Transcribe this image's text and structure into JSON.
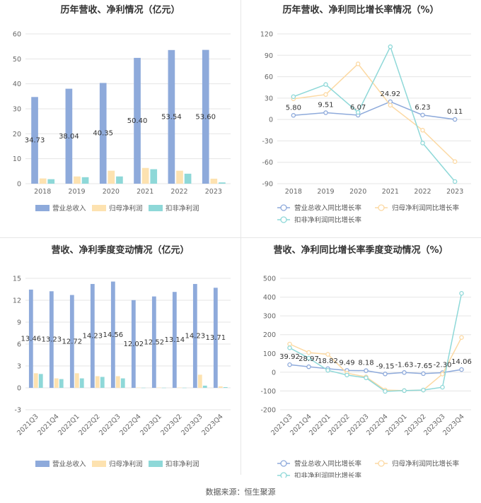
{
  "footer": "数据来源：恒生聚源",
  "colors": {
    "revenue": "#8eaadb",
    "net_profit": "#fde2b0",
    "deducted_profit": "#8ed8d8",
    "rev_growth": "#8eaadb",
    "np_growth": "#fcd9a3",
    "dp_growth": "#8ed8d8",
    "grid": "#e5e5e5",
    "axis_text": "#666666",
    "title": "#333333"
  },
  "chart_data": [
    {
      "type": "bar",
      "title": "历年营收、净利情况（亿元）",
      "categories": [
        "2018",
        "2019",
        "2020",
        "2021",
        "2022",
        "2023"
      ],
      "ylim": [
        0,
        60
      ],
      "yticks": [
        0,
        10,
        20,
        30,
        40,
        50,
        60
      ],
      "series": [
        {
          "name": "营业总收入",
          "values": [
            34.73,
            38.04,
            40.35,
            50.4,
            53.54,
            53.6
          ]
        },
        {
          "name": "归母净利润",
          "values": [
            2.1,
            2.9,
            5.2,
            6.3,
            5.2,
            2.0
          ]
        },
        {
          "name": "扣非净利润",
          "values": [
            1.8,
            2.6,
            2.9,
            5.8,
            4.0,
            0.5
          ]
        }
      ],
      "data_labels": [
        "34.73",
        "38.04",
        "40.35",
        "50.40",
        "53.54",
        "53.60"
      ],
      "legend": "bottom"
    },
    {
      "type": "line",
      "title": "历年营收、净利同比增长率情况（%）",
      "categories": [
        "2018",
        "2019",
        "2020",
        "2021",
        "2022",
        "2023"
      ],
      "ylim": [
        -90,
        120
      ],
      "yticks": [
        -90,
        -60,
        -30,
        0,
        30,
        60,
        90,
        120
      ],
      "series": [
        {
          "name": "营业总收入同比增长率",
          "values": [
            5.8,
            9.51,
            6.07,
            24.92,
            6.23,
            0.11
          ]
        },
        {
          "name": "归母净利润同比增长率",
          "values": [
            29,
            35,
            78,
            20,
            -15,
            -59
          ]
        },
        {
          "name": "扣非净利润同比增长率",
          "values": [
            32,
            49,
            10,
            102,
            -33,
            -87
          ]
        }
      ],
      "data_labels": [
        "5.80",
        "9.51",
        "6.07",
        "24.92",
        "6.23",
        "0.11"
      ],
      "legend": "bottom"
    },
    {
      "type": "bar",
      "title": "营收、净利季度变动情况（亿元）",
      "categories": [
        "2021Q3",
        "2021Q4",
        "2022Q1",
        "2022Q2",
        "2022Q3",
        "2022Q4",
        "2023Q1",
        "2023Q2",
        "2023Q3",
        "2023Q4"
      ],
      "ylim": [
        -3,
        15
      ],
      "yticks": [
        -3,
        0,
        3,
        6,
        9,
        12,
        15
      ],
      "series": [
        {
          "name": "营业总收入",
          "values": [
            13.46,
            13.23,
            12.72,
            14.23,
            14.56,
            12.02,
            12.52,
            13.14,
            14.23,
            13.71
          ]
        },
        {
          "name": "归母净利润",
          "values": [
            2.0,
            1.3,
            2.0,
            1.6,
            1.6,
            0.05,
            0.05,
            0.05,
            1.8,
            0.2
          ]
        },
        {
          "name": "扣非净利润",
          "values": [
            1.9,
            1.2,
            1.3,
            1.5,
            1.3,
            0.02,
            0.02,
            0.02,
            0.3,
            0.1
          ]
        }
      ],
      "data_labels": [
        "13.46",
        "13.23",
        "12.72",
        "14.23",
        "14.56",
        "12.02",
        "12.52",
        "13.14",
        "14.23",
        "13.71"
      ],
      "legend": "bottom"
    },
    {
      "type": "line",
      "title": "营收、净利同比增长率季度变动情况（%）",
      "categories": [
        "2021Q3",
        "2021Q4",
        "2022Q1",
        "2022Q2",
        "2022Q3",
        "2022Q4",
        "2023Q1",
        "2023Q2",
        "2023Q3",
        "2023Q4"
      ],
      "ylim": [
        -200,
        500
      ],
      "yticks": [
        -200,
        -100,
        0,
        100,
        200,
        300,
        400,
        500
      ],
      "series": [
        {
          "name": "营业总收入同比增长率",
          "values": [
            39.92,
            28.97,
            18.82,
            9.49,
            8.18,
            -9.15,
            -1.63,
            -7.65,
            -2.3,
            14.06
          ]
        },
        {
          "name": "归母净利润同比增长率",
          "values": [
            150,
            105,
            95,
            -5,
            -25,
            -95,
            -98,
            -95,
            -10,
            185
          ]
        },
        {
          "name": "扣非净利润同比增长率",
          "values": [
            130,
            75,
            10,
            -15,
            -30,
            -102,
            -98,
            -95,
            -80,
            420
          ]
        }
      ],
      "data_labels": [
        "39.92",
        "28.97",
        "18.82",
        "9.49",
        "8.18",
        "-9.15",
        "-1.63",
        "-7.65",
        "-2.30",
        "14.06"
      ],
      "legend": "bottom"
    }
  ]
}
